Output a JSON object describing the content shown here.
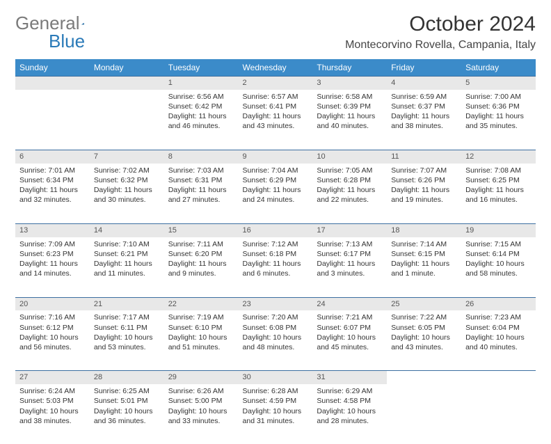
{
  "logo": {
    "text1": "General",
    "text2": "Blue"
  },
  "title": "October 2024",
  "location": "Montecorvino Rovella, Campania, Italy",
  "colors": {
    "header_bg": "#3b8bc9",
    "header_text": "#ffffff",
    "daynum_bg": "#e8e8e8",
    "daynum_border": "#3b6ea0",
    "body_text": "#333333",
    "logo_gray": "#7a7a7a",
    "logo_blue": "#2a7ab8"
  },
  "weekdays": [
    "Sunday",
    "Monday",
    "Tuesday",
    "Wednesday",
    "Thursday",
    "Friday",
    "Saturday"
  ],
  "weeks": [
    [
      null,
      null,
      {
        "n": "1",
        "sr": "Sunrise: 6:56 AM",
        "ss": "Sunset: 6:42 PM",
        "d1": "Daylight: 11 hours",
        "d2": "and 46 minutes."
      },
      {
        "n": "2",
        "sr": "Sunrise: 6:57 AM",
        "ss": "Sunset: 6:41 PM",
        "d1": "Daylight: 11 hours",
        "d2": "and 43 minutes."
      },
      {
        "n": "3",
        "sr": "Sunrise: 6:58 AM",
        "ss": "Sunset: 6:39 PM",
        "d1": "Daylight: 11 hours",
        "d2": "and 40 minutes."
      },
      {
        "n": "4",
        "sr": "Sunrise: 6:59 AM",
        "ss": "Sunset: 6:37 PM",
        "d1": "Daylight: 11 hours",
        "d2": "and 38 minutes."
      },
      {
        "n": "5",
        "sr": "Sunrise: 7:00 AM",
        "ss": "Sunset: 6:36 PM",
        "d1": "Daylight: 11 hours",
        "d2": "and 35 minutes."
      }
    ],
    [
      {
        "n": "6",
        "sr": "Sunrise: 7:01 AM",
        "ss": "Sunset: 6:34 PM",
        "d1": "Daylight: 11 hours",
        "d2": "and 32 minutes."
      },
      {
        "n": "7",
        "sr": "Sunrise: 7:02 AM",
        "ss": "Sunset: 6:32 PM",
        "d1": "Daylight: 11 hours",
        "d2": "and 30 minutes."
      },
      {
        "n": "8",
        "sr": "Sunrise: 7:03 AM",
        "ss": "Sunset: 6:31 PM",
        "d1": "Daylight: 11 hours",
        "d2": "and 27 minutes."
      },
      {
        "n": "9",
        "sr": "Sunrise: 7:04 AM",
        "ss": "Sunset: 6:29 PM",
        "d1": "Daylight: 11 hours",
        "d2": "and 24 minutes."
      },
      {
        "n": "10",
        "sr": "Sunrise: 7:05 AM",
        "ss": "Sunset: 6:28 PM",
        "d1": "Daylight: 11 hours",
        "d2": "and 22 minutes."
      },
      {
        "n": "11",
        "sr": "Sunrise: 7:07 AM",
        "ss": "Sunset: 6:26 PM",
        "d1": "Daylight: 11 hours",
        "d2": "and 19 minutes."
      },
      {
        "n": "12",
        "sr": "Sunrise: 7:08 AM",
        "ss": "Sunset: 6:25 PM",
        "d1": "Daylight: 11 hours",
        "d2": "and 16 minutes."
      }
    ],
    [
      {
        "n": "13",
        "sr": "Sunrise: 7:09 AM",
        "ss": "Sunset: 6:23 PM",
        "d1": "Daylight: 11 hours",
        "d2": "and 14 minutes."
      },
      {
        "n": "14",
        "sr": "Sunrise: 7:10 AM",
        "ss": "Sunset: 6:21 PM",
        "d1": "Daylight: 11 hours",
        "d2": "and 11 minutes."
      },
      {
        "n": "15",
        "sr": "Sunrise: 7:11 AM",
        "ss": "Sunset: 6:20 PM",
        "d1": "Daylight: 11 hours",
        "d2": "and 9 minutes."
      },
      {
        "n": "16",
        "sr": "Sunrise: 7:12 AM",
        "ss": "Sunset: 6:18 PM",
        "d1": "Daylight: 11 hours",
        "d2": "and 6 minutes."
      },
      {
        "n": "17",
        "sr": "Sunrise: 7:13 AM",
        "ss": "Sunset: 6:17 PM",
        "d1": "Daylight: 11 hours",
        "d2": "and 3 minutes."
      },
      {
        "n": "18",
        "sr": "Sunrise: 7:14 AM",
        "ss": "Sunset: 6:15 PM",
        "d1": "Daylight: 11 hours",
        "d2": "and 1 minute."
      },
      {
        "n": "19",
        "sr": "Sunrise: 7:15 AM",
        "ss": "Sunset: 6:14 PM",
        "d1": "Daylight: 10 hours",
        "d2": "and 58 minutes."
      }
    ],
    [
      {
        "n": "20",
        "sr": "Sunrise: 7:16 AM",
        "ss": "Sunset: 6:12 PM",
        "d1": "Daylight: 10 hours",
        "d2": "and 56 minutes."
      },
      {
        "n": "21",
        "sr": "Sunrise: 7:17 AM",
        "ss": "Sunset: 6:11 PM",
        "d1": "Daylight: 10 hours",
        "d2": "and 53 minutes."
      },
      {
        "n": "22",
        "sr": "Sunrise: 7:19 AM",
        "ss": "Sunset: 6:10 PM",
        "d1": "Daylight: 10 hours",
        "d2": "and 51 minutes."
      },
      {
        "n": "23",
        "sr": "Sunrise: 7:20 AM",
        "ss": "Sunset: 6:08 PM",
        "d1": "Daylight: 10 hours",
        "d2": "and 48 minutes."
      },
      {
        "n": "24",
        "sr": "Sunrise: 7:21 AM",
        "ss": "Sunset: 6:07 PM",
        "d1": "Daylight: 10 hours",
        "d2": "and 45 minutes."
      },
      {
        "n": "25",
        "sr": "Sunrise: 7:22 AM",
        "ss": "Sunset: 6:05 PM",
        "d1": "Daylight: 10 hours",
        "d2": "and 43 minutes."
      },
      {
        "n": "26",
        "sr": "Sunrise: 7:23 AM",
        "ss": "Sunset: 6:04 PM",
        "d1": "Daylight: 10 hours",
        "d2": "and 40 minutes."
      }
    ],
    [
      {
        "n": "27",
        "sr": "Sunrise: 6:24 AM",
        "ss": "Sunset: 5:03 PM",
        "d1": "Daylight: 10 hours",
        "d2": "and 38 minutes."
      },
      {
        "n": "28",
        "sr": "Sunrise: 6:25 AM",
        "ss": "Sunset: 5:01 PM",
        "d1": "Daylight: 10 hours",
        "d2": "and 36 minutes."
      },
      {
        "n": "29",
        "sr": "Sunrise: 6:26 AM",
        "ss": "Sunset: 5:00 PM",
        "d1": "Daylight: 10 hours",
        "d2": "and 33 minutes."
      },
      {
        "n": "30",
        "sr": "Sunrise: 6:28 AM",
        "ss": "Sunset: 4:59 PM",
        "d1": "Daylight: 10 hours",
        "d2": "and 31 minutes."
      },
      {
        "n": "31",
        "sr": "Sunrise: 6:29 AM",
        "ss": "Sunset: 4:58 PM",
        "d1": "Daylight: 10 hours",
        "d2": "and 28 minutes."
      },
      null,
      null
    ]
  ]
}
